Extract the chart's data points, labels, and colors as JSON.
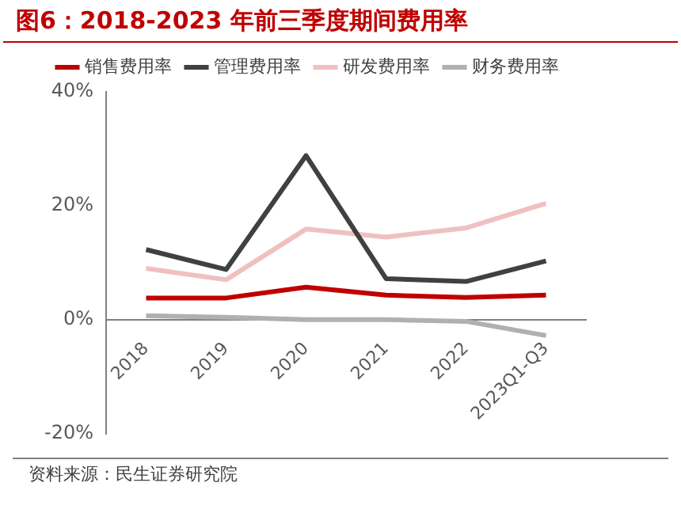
{
  "chart_data": {
    "type": "line",
    "title": "图6：2018-2023 年前三季度期间费用率",
    "categories": [
      "2018",
      "2019",
      "2020",
      "2021",
      "2022",
      "2023Q1-Q3"
    ],
    "series": [
      {
        "name": "销售费用率",
        "color": "#c00000",
        "values": [
          3.8,
          3.8,
          5.7,
          4.3,
          3.9,
          4.3
        ]
      },
      {
        "name": "管理费用率",
        "color": "#404040",
        "values": [
          12.3,
          8.8,
          28.8,
          7.2,
          6.7,
          10.3
        ]
      },
      {
        "name": "研发费用率",
        "color": "#f0c0c0",
        "values": [
          9.0,
          7.0,
          15.9,
          14.5,
          16.1,
          20.4
        ]
      },
      {
        "name": "财务费用率",
        "color": "#b0b0b0",
        "values": [
          0.7,
          0.4,
          0,
          0,
          -0.3,
          -2.8
        ]
      }
    ],
    "ylim": [
      -20,
      40
    ],
    "yticks": [
      {
        "value": -20,
        "label": "-20%"
      },
      {
        "value": 0,
        "label": "0%"
      },
      {
        "value": 20,
        "label": "20%"
      },
      {
        "value": 40,
        "label": "40%"
      }
    ],
    "grid": false,
    "legend": "top",
    "marker": "none",
    "line_style": "solid",
    "annotations": [
      "资料来源：民生证券研究院"
    ]
  }
}
